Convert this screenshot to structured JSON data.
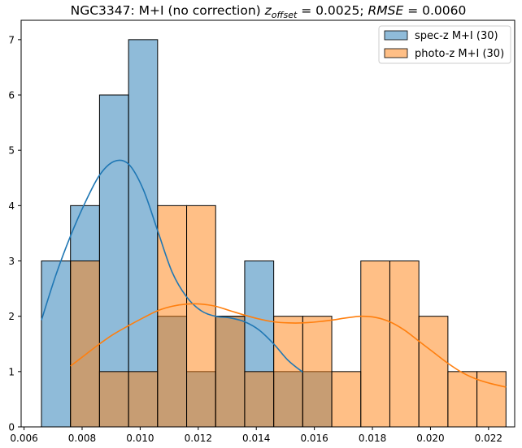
{
  "chart_data": {
    "type": "bar",
    "title": "NGC3347: M+I (no correction) z_offset = 0.0025; RMSE = 0.0060",
    "title_parts": {
      "prefix": "NGC3347: M+I (no correction) ",
      "z_main": "z",
      "z_sub": "offset",
      "z_val": " = 0.0025; ",
      "rmse_label": "RMSE",
      "rmse_val": " = 0.0060"
    },
    "xlabel": "",
    "ylabel": "",
    "xlim": [
      0.0059,
      0.0229
    ],
    "ylim": [
      0,
      7.35
    ],
    "grid": false,
    "legend_position": "top-right",
    "x_ticks": [
      0.006,
      0.008,
      0.01,
      0.012,
      0.014,
      0.016,
      0.018,
      0.02,
      0.022
    ],
    "x_tick_labels": [
      "0.006",
      "0.008",
      "0.010",
      "0.012",
      "0.014",
      "0.016",
      "0.018",
      "0.020",
      "0.022"
    ],
    "y_ticks": [
      0,
      1,
      2,
      3,
      4,
      5,
      6,
      7
    ],
    "y_tick_labels": [
      "0",
      "1",
      "2",
      "3",
      "4",
      "5",
      "6",
      "7"
    ],
    "series": [
      {
        "name": "spec-z M+I (30)",
        "color": "#1f77b4",
        "bins": [
          {
            "x0": 0.0066,
            "x1": 0.0076,
            "count": 3
          },
          {
            "x0": 0.0076,
            "x1": 0.0086,
            "count": 4
          },
          {
            "x0": 0.0086,
            "x1": 0.0096,
            "count": 6
          },
          {
            "x0": 0.0096,
            "x1": 0.0106,
            "count": 7
          },
          {
            "x0": 0.0106,
            "x1": 0.0116,
            "count": 2
          },
          {
            "x0": 0.0116,
            "x1": 0.0126,
            "count": 1
          },
          {
            "x0": 0.0126,
            "x1": 0.0136,
            "count": 2
          },
          {
            "x0": 0.0136,
            "x1": 0.0146,
            "count": 3
          },
          {
            "x0": 0.0146,
            "x1": 0.0156,
            "count": 1
          },
          {
            "x0": 0.0156,
            "x1": 0.0166,
            "count": 1
          }
        ],
        "kde": [
          [
            0.0066,
            1.93
          ],
          [
            0.0071,
            2.75
          ],
          [
            0.0076,
            3.45
          ],
          [
            0.0081,
            4.05
          ],
          [
            0.0086,
            4.55
          ],
          [
            0.0091,
            4.8
          ],
          [
            0.0096,
            4.75
          ],
          [
            0.0101,
            4.3
          ],
          [
            0.0106,
            3.55
          ],
          [
            0.0111,
            2.8
          ],
          [
            0.0116,
            2.35
          ],
          [
            0.0121,
            2.1
          ],
          [
            0.0126,
            2.0
          ],
          [
            0.0131,
            1.97
          ],
          [
            0.0136,
            1.9
          ],
          [
            0.0141,
            1.75
          ],
          [
            0.0146,
            1.5
          ],
          [
            0.0151,
            1.2
          ],
          [
            0.0156,
            0.99
          ]
        ]
      },
      {
        "name": "photo-z M+I (30)",
        "color": "#ff7f0e",
        "bins": [
          {
            "x0": 0.0076,
            "x1": 0.0086,
            "count": 3
          },
          {
            "x0": 0.0086,
            "x1": 0.0096,
            "count": 1
          },
          {
            "x0": 0.0096,
            "x1": 0.0106,
            "count": 1
          },
          {
            "x0": 0.0106,
            "x1": 0.0116,
            "count": 4
          },
          {
            "x0": 0.0116,
            "x1": 0.0126,
            "count": 4
          },
          {
            "x0": 0.0126,
            "x1": 0.0136,
            "count": 2
          },
          {
            "x0": 0.0136,
            "x1": 0.0146,
            "count": 1
          },
          {
            "x0": 0.0146,
            "x1": 0.0156,
            "count": 2
          },
          {
            "x0": 0.0156,
            "x1": 0.0166,
            "count": 2
          },
          {
            "x0": 0.0166,
            "x1": 0.0176,
            "count": 1
          },
          {
            "x0": 0.0176,
            "x1": 0.0186,
            "count": 3
          },
          {
            "x0": 0.0186,
            "x1": 0.0196,
            "count": 3
          },
          {
            "x0": 0.0196,
            "x1": 0.0206,
            "count": 2
          },
          {
            "x0": 0.0206,
            "x1": 0.0216,
            "count": 1
          },
          {
            "x0": 0.0216,
            "x1": 0.0226,
            "count": 1
          }
        ],
        "kde": [
          [
            0.0076,
            1.1
          ],
          [
            0.0081,
            1.3
          ],
          [
            0.0086,
            1.5
          ],
          [
            0.0091,
            1.68
          ],
          [
            0.0096,
            1.83
          ],
          [
            0.0101,
            1.97
          ],
          [
            0.0106,
            2.1
          ],
          [
            0.0111,
            2.18
          ],
          [
            0.0116,
            2.22
          ],
          [
            0.0121,
            2.22
          ],
          [
            0.0126,
            2.18
          ],
          [
            0.0131,
            2.1
          ],
          [
            0.0136,
            2.02
          ],
          [
            0.0141,
            1.95
          ],
          [
            0.0146,
            1.9
          ],
          [
            0.0151,
            1.88
          ],
          [
            0.0156,
            1.88
          ],
          [
            0.0161,
            1.9
          ],
          [
            0.0166,
            1.93
          ],
          [
            0.0171,
            1.97
          ],
          [
            0.0176,
            2.0
          ],
          [
            0.0181,
            1.98
          ],
          [
            0.0186,
            1.9
          ],
          [
            0.0191,
            1.75
          ],
          [
            0.0196,
            1.55
          ],
          [
            0.0201,
            1.35
          ],
          [
            0.0206,
            1.15
          ],
          [
            0.0211,
            0.98
          ],
          [
            0.0216,
            0.86
          ],
          [
            0.0221,
            0.78
          ],
          [
            0.0226,
            0.72
          ]
        ]
      }
    ]
  }
}
